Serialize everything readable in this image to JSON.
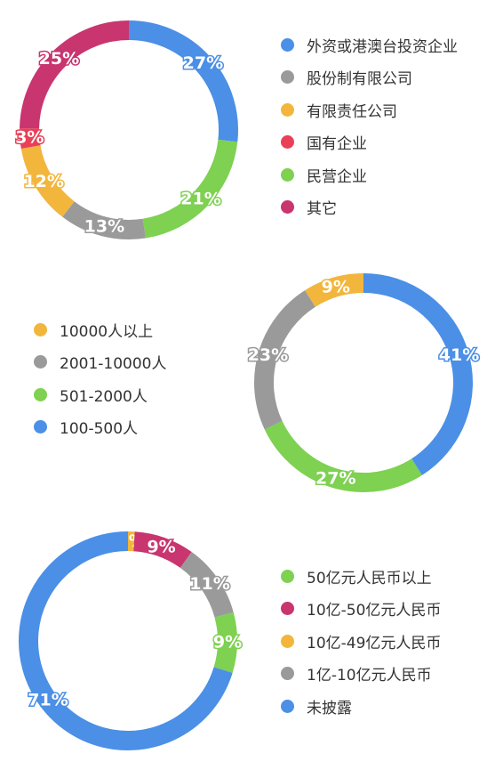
{
  "colors": {
    "blue": "#4b8fe6",
    "gray": "#9a9a9a",
    "yellow": "#f2b63c",
    "red": "#e94057",
    "green": "#7ed151",
    "magenta": "#c8356f"
  },
  "chart_data": [
    {
      "type": "pie",
      "donut": true,
      "legend_position": "right",
      "categories": [
        "外资或港澳台投资企业",
        "股份制有限公司",
        "有限责任公司",
        "国有企业",
        "民营企业",
        "其它"
      ],
      "legend_colors": [
        "#4b8fe6",
        "#9a9a9a",
        "#f2b63c",
        "#e94057",
        "#7ed151",
        "#c8356f"
      ],
      "slices": [
        {
          "category": "外资或港澳台投资企业",
          "value": 27,
          "label": "27%",
          "color": "#4b8fe6"
        },
        {
          "category": "民营企业",
          "value": 21,
          "label": "21%",
          "color": "#7ed151"
        },
        {
          "category": "股份制有限公司",
          "value": 13,
          "label": "13%",
          "color": "#9a9a9a"
        },
        {
          "category": "有限责任公司",
          "value": 12,
          "label": "12%",
          "color": "#f2b63c"
        },
        {
          "category": "国有企业",
          "value": 3,
          "label": "3%",
          "color": "#e94057"
        },
        {
          "category": "其它",
          "value": 25,
          "label": "25%",
          "color": "#c8356f"
        }
      ]
    },
    {
      "type": "pie",
      "donut": true,
      "legend_position": "left",
      "categories": [
        "10000人以上",
        "2001-10000人",
        "501-2000人",
        "100-500人"
      ],
      "legend_colors": [
        "#f2b63c",
        "#9a9a9a",
        "#7ed151",
        "#4b8fe6"
      ],
      "slices": [
        {
          "category": "100-500人",
          "value": 41,
          "label": "41%",
          "color": "#4b8fe6"
        },
        {
          "category": "501-2000人",
          "value": 27,
          "label": "27%",
          "color": "#7ed151"
        },
        {
          "category": "2001-10000人",
          "value": 23,
          "label": "23%",
          "color": "#9a9a9a"
        },
        {
          "category": "10000人以上",
          "value": 9,
          "label": "9%",
          "color": "#f2b63c"
        }
      ]
    },
    {
      "type": "pie",
      "donut": true,
      "legend_position": "right",
      "categories": [
        "50亿元人民币以上",
        "10亿-50亿元人民币",
        "10亿-49亿元人民币",
        "1亿-10亿元人民币",
        "未披露"
      ],
      "legend_colors": [
        "#7ed151",
        "#c8356f",
        "#f2b63c",
        "#9a9a9a",
        "#4b8fe6"
      ],
      "slices": [
        {
          "category": "10亿-49亿元人民币",
          "value": 1,
          "label": "1%",
          "color": "#f2b63c"
        },
        {
          "category": "10亿-50亿元人民币",
          "value": 9,
          "label": "9%",
          "color": "#c8356f"
        },
        {
          "category": "1亿-10亿元人民币",
          "value": 11,
          "label": "11%",
          "color": "#9a9a9a"
        },
        {
          "category": "50亿元人民币以上",
          "value": 9,
          "label": "9%",
          "color": "#7ed151"
        },
        {
          "category": "未披露",
          "value": 71,
          "label": "71%",
          "color": "#4b8fe6"
        }
      ]
    }
  ]
}
